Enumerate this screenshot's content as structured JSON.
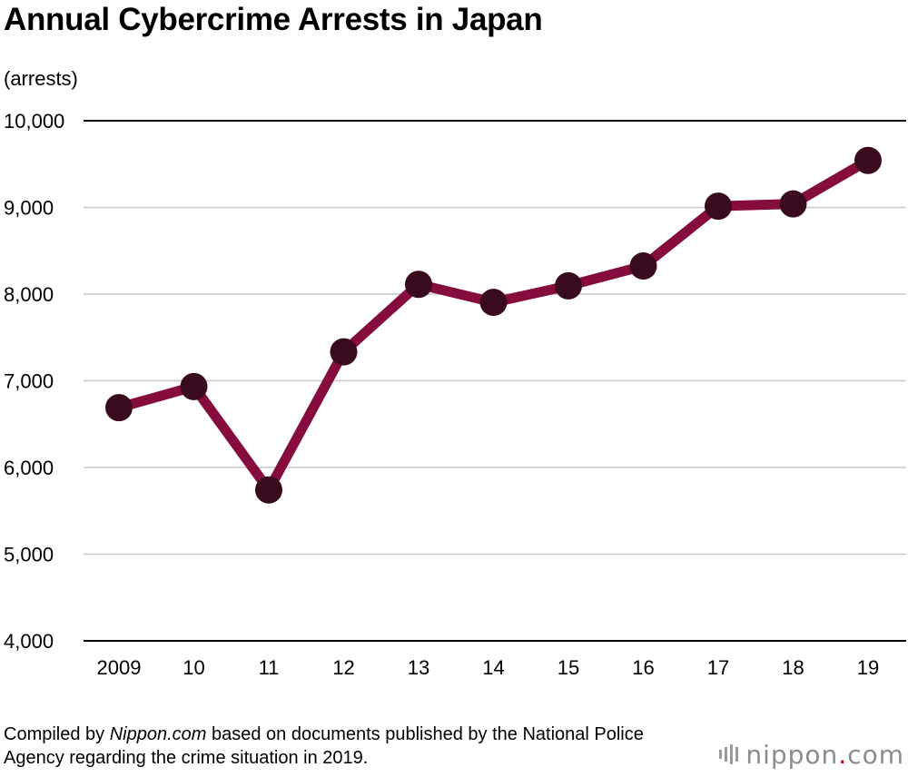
{
  "chart_data": {
    "type": "line",
    "title": "Annual Cybercrime Arrests in Japan",
    "ylabel": "(arrests)",
    "xlabel": "",
    "categories": [
      "2009",
      "10",
      "11",
      "12",
      "13",
      "14",
      "15",
      "16",
      "17",
      "18",
      "19"
    ],
    "series": [
      {
        "values": [
          6690,
          6933,
          5741,
          7334,
          8113,
          7905,
          8096,
          8324,
          9014,
          9040,
          9542
        ]
      }
    ],
    "ylim": [
      4000,
      10000
    ],
    "yticks": [
      4000,
      5000,
      6000,
      7000,
      8000,
      9000,
      10000
    ],
    "ytick_labels": [
      "4,000",
      "5,000",
      "6,000",
      "7,000",
      "8,000",
      "9,000",
      "10,000"
    ],
    "grid": true,
    "colors": {
      "line": "#850c3c",
      "marker": "#3a0a1e",
      "grid": "#c8c8c8",
      "axis": "#000000"
    }
  },
  "source": {
    "prefix": "Compiled by ",
    "emphasis": "Nippon.com",
    "suffix": " based on documents published by the National Police Agency regarding the crime situation in 2019."
  },
  "logo": {
    "name": "nippon",
    "dot": ".",
    "tld": "com"
  }
}
